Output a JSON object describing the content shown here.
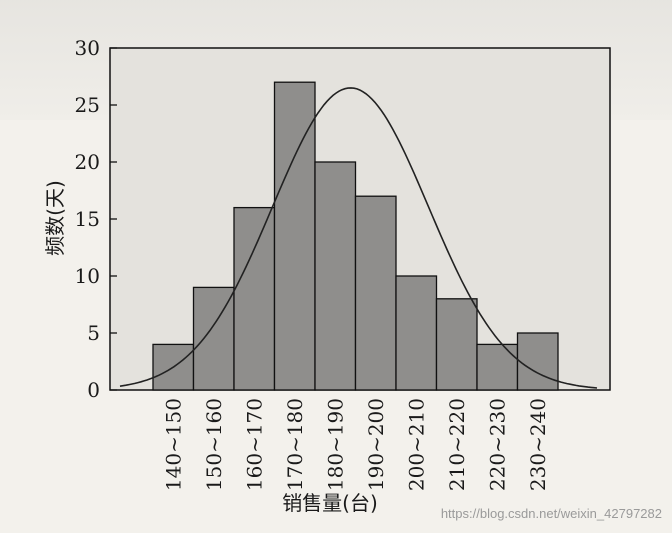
{
  "chart_data": {
    "type": "bar",
    "title": "",
    "xlabel": "销售量(台)",
    "ylabel": "频数(天)",
    "ylim": [
      0,
      30
    ],
    "yticks": [
      0,
      5,
      10,
      15,
      20,
      25,
      30
    ],
    "categories": [
      "140~150",
      "150~160",
      "160~170",
      "170~180",
      "180~190",
      "190~200",
      "200~210",
      "210~220",
      "220~230",
      "230~240"
    ],
    "values": [
      4,
      9,
      16,
      27,
      20,
      17,
      10,
      8,
      4,
      5
    ],
    "overlay": {
      "type": "normal-curve",
      "peak": 26.5
    },
    "grid": false,
    "colors": {
      "bar": "#8f8e8c",
      "bar_edge": "#111111",
      "curve": "#222222",
      "plot_bg": "#e4e2dd"
    }
  },
  "watermark": "https://blog.csdn.net/weixin_42797282"
}
